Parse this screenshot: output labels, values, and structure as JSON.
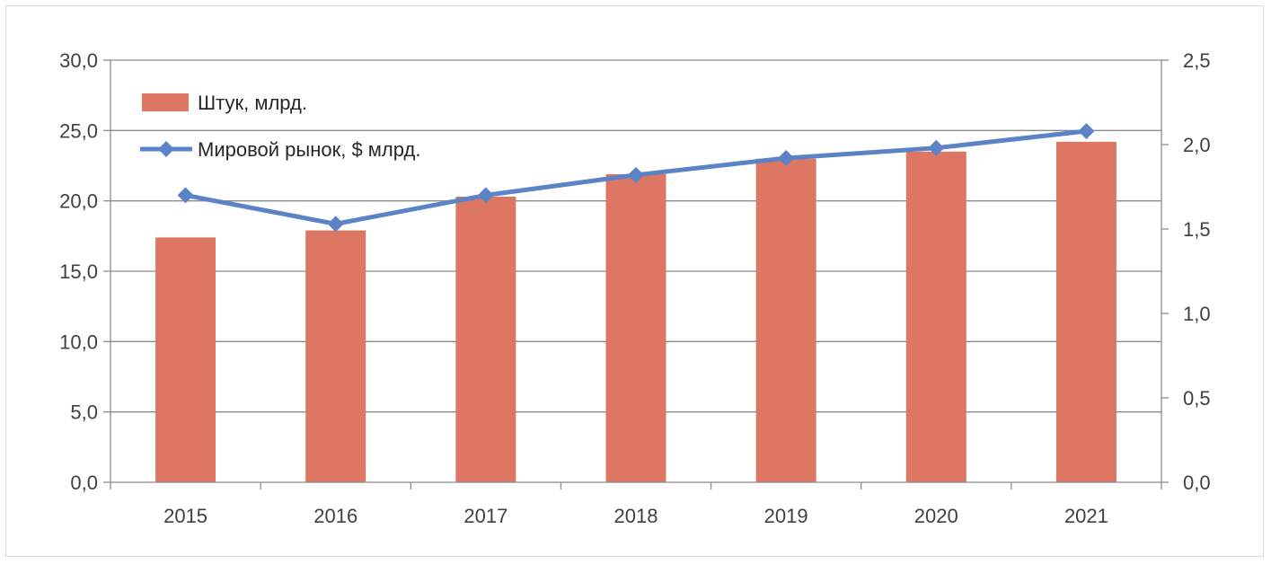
{
  "chart_data": {
    "type": "bar",
    "categories": [
      "2015",
      "2016",
      "2017",
      "2018",
      "2019",
      "2020",
      "2021"
    ],
    "series": [
      {
        "name": "Штук, млрд.",
        "chart_type": "bar",
        "axis": "left",
        "values": [
          17.4,
          17.9,
          20.3,
          21.9,
          23.0,
          23.5,
          24.2
        ]
      },
      {
        "name": "Мировой рынок, $ млрд.",
        "chart_type": "line",
        "marker": "diamond",
        "axis": "right",
        "values": [
          1.7,
          1.53,
          1.7,
          1.82,
          1.92,
          1.98,
          2.08
        ]
      }
    ],
    "y_left": {
      "lim": [
        0,
        30
      ],
      "ticks": [
        "0,0",
        "5,0",
        "10,0",
        "15,0",
        "20,0",
        "25,0",
        "30,0"
      ]
    },
    "y_right": {
      "lim": [
        0,
        2.5
      ],
      "ticks": [
        "0,0",
        "0,5",
        "1,0",
        "1,5",
        "2,0",
        "2,5"
      ]
    },
    "grid": true,
    "legend_position": "top-left",
    "colors": {
      "bar": "#dd7662",
      "line": "#5b83c6",
      "grid": "#8c8c8c",
      "axis": "#8c8c8c"
    }
  }
}
